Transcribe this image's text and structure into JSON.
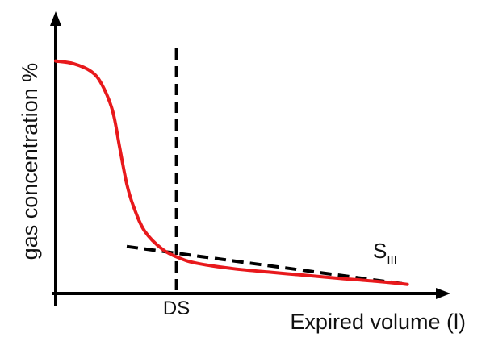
{
  "chart_data": {
    "type": "line",
    "title": "",
    "xlabel": "Expired volume (l)",
    "ylabel": "gas concentration %",
    "grid": false,
    "legend": "none",
    "xlim": [
      0,
      10
    ],
    "ylim": [
      0,
      100
    ],
    "series": [
      {
        "color": "#e8191c",
        "x": [
          0,
          0.5,
          1,
          1.3,
          1.6,
          1.8,
          2.0,
          2.2,
          2.5,
          3.0,
          3.5,
          4,
          5,
          6,
          7,
          8,
          9,
          9.9
        ],
        "y": [
          89,
          88,
          85,
          80,
          70,
          56,
          42,
          33,
          24,
          17,
          13.5,
          11.5,
          9.5,
          8.2,
          7,
          5.8,
          4.7,
          3.5
        ]
      }
    ],
    "annotations": [
      {
        "label": "DS",
        "type": "vertical-dashed-line",
        "x": 3.4
      },
      {
        "label": "S",
        "subscript": "III",
        "type": "tangent-dashed-line",
        "x": [
          2.0,
          9.9
        ],
        "y": [
          18,
          3.5
        ]
      }
    ],
    "colors": {
      "curve": "#e8191c",
      "axes": "#000000",
      "dashes": "#000000"
    }
  }
}
